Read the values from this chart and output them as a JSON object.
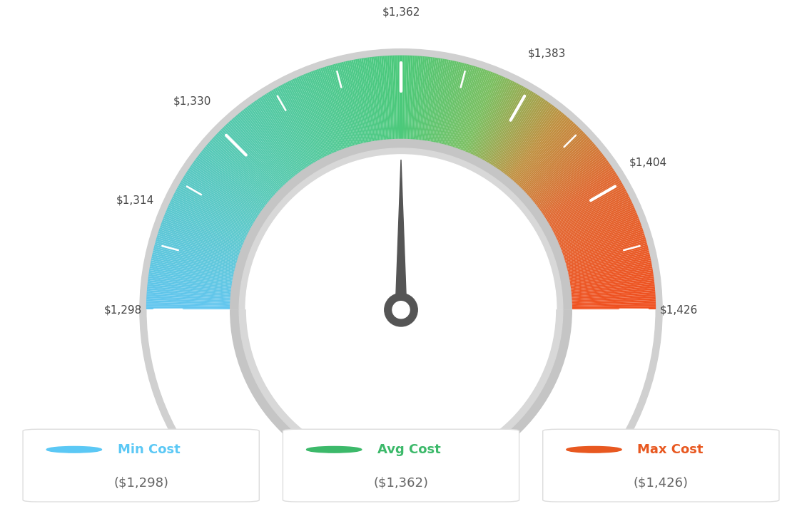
{
  "min_val": 1298,
  "max_val": 1426,
  "avg_val": 1362,
  "labels": {
    "min_cost": "Min Cost",
    "avg_cost": "Avg Cost",
    "max_cost": "Max Cost"
  },
  "label_values": {
    "min_cost": "($1,298)",
    "avg_cost": "($1,362)",
    "max_cost": "($1,426)"
  },
  "tick_values": [
    1298,
    1314,
    1330,
    1362,
    1383,
    1404,
    1426
  ],
  "tick_labels": [
    "$1,298",
    "$1,314",
    "$1,330",
    "$1,362",
    "$1,383",
    "$1,404",
    "$1,426"
  ],
  "color_stops": [
    [
      0.0,
      "#62C6F0"
    ],
    [
      0.25,
      "#55C9B0"
    ],
    [
      0.5,
      "#4BC97A"
    ],
    [
      0.62,
      "#7ABF60"
    ],
    [
      0.72,
      "#C09040"
    ],
    [
      0.82,
      "#E06830"
    ],
    [
      1.0,
      "#F05020"
    ]
  ],
  "needle_color": "#555555",
  "background": "#ffffff",
  "label_color_min": "#5BC8F5",
  "label_color_avg": "#3CB96A",
  "label_color_max": "#E85820",
  "value_color": "#666666",
  "inner_gray": "#c8c8c8",
  "inner_gray2": "#e0e0e0",
  "outer_border_gray": "#d0d0d0"
}
